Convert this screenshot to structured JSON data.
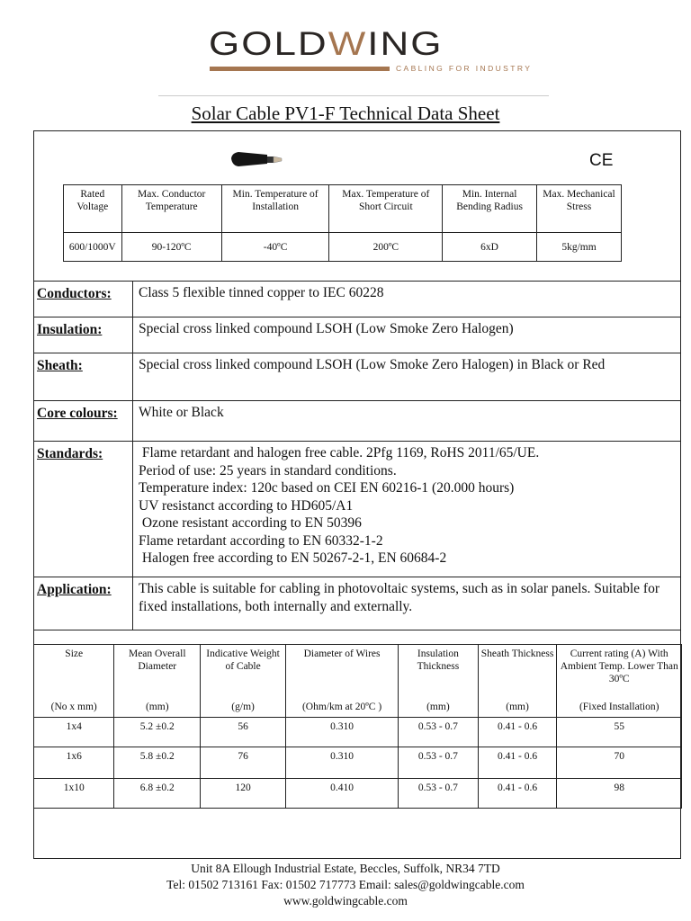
{
  "logo": {
    "name_part1": "GOLD",
    "name_w": "W",
    "name_part2": "ING",
    "tagline": "CABLING FOR INDUSTRY",
    "brand_color": "#a57650"
  },
  "title": "Solar Cable PV1-F Technical Data Sheet",
  "ce_mark": "CE",
  "ratings": {
    "headers": [
      "Rated Voltage",
      "Max. Conductor Temperature",
      "Min. Temperature of Installation",
      "Max. Temperature of Short Circuit",
      "Min. Internal Bending Radius",
      "Max. Mechanical Stress"
    ],
    "values": [
      "600/1000V",
      "90-120ºC",
      "-40ºC",
      "200ºC",
      "6xD",
      "5kg/mm"
    ]
  },
  "properties": [
    {
      "label": "Conductors:",
      "value": "Class 5 flexible tinned copper to IEC 60228"
    },
    {
      "label": "Insulation:",
      "value": "Special cross linked compound LSOH (Low Smoke Zero Halogen)"
    },
    {
      "label": "Sheath:",
      "value": "Special cross linked compound LSOH (Low Smoke Zero Halogen) in Black or Red"
    },
    {
      "label": "Core colours:",
      "value": "White or Black"
    },
    {
      "label": "Standards:",
      "lines": [
        " Flame retardant and halogen free cable. 2Pfg 1169, RoHS 2011/65/UE.",
        "Period of use: 25 years in standard conditions.",
        "Temperature index: 120c based on CEI EN 60216-1 (20.000 hours)",
        "UV resistanct according to HD605/A1",
        " Ozone resistant according to EN 50396",
        "Flame retardant according to EN 60332-1-2",
        " Halogen free according to EN 50267-2-1, EN 60684-2"
      ]
    },
    {
      "label": "Application:",
      "value": "This cable is suitable for cabling in photovoltaic systems, such as in solar panels. Suitable for fixed installations, both internally and externally."
    }
  ],
  "sizes": {
    "headers": [
      {
        "title": "Size",
        "unit": "(No x mm)"
      },
      {
        "title": "Mean Overall Diameter",
        "unit": "(mm)"
      },
      {
        "title": "Indicative Weight of Cable",
        "unit": "(g/m)"
      },
      {
        "title": "Diameter of Wires",
        "unit": "(Ohm/km at 20ºC )"
      },
      {
        "title": "Insulation Thickness",
        "unit": "(mm)"
      },
      {
        "title": "Sheath Thickness",
        "unit": "(mm)"
      },
      {
        "title": "Current rating (A) With Ambient Temp. Lower Than 30ºC",
        "unit": "(Fixed Installation)"
      }
    ],
    "rows": [
      [
        "1x4",
        "5.2 ±0.2",
        "56",
        "0.310",
        "0.53 - 0.7",
        "0.41 - 0.6",
        "55"
      ],
      [
        "1x6",
        "5.8 ±0.2",
        "76",
        "0.310",
        "0.53 - 0.7",
        "0.41 - 0.6",
        "70"
      ],
      [
        "1x10",
        "6.8 ±0.2",
        "120",
        "0.410",
        "0.53 - 0.7",
        "0.41 - 0.6",
        "98"
      ]
    ]
  },
  "footer": {
    "address": "Unit 8A Ellough Industrial Estate, Beccles, Suffolk, NR34 7TD",
    "contact": "Tel: 01502 713161 Fax: 01502 717773 Email: sales@goldwingcable.com",
    "website": "www.goldwingcable.com"
  }
}
